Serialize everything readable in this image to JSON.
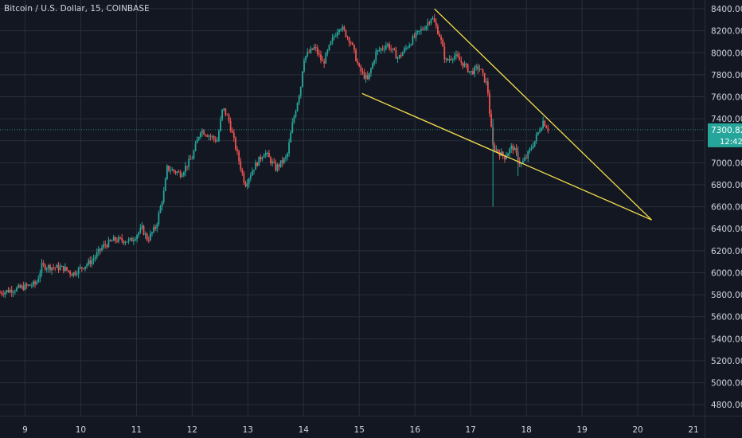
{
  "chart_data": {
    "type": "candlestick",
    "title": "Bitcoin / U.S. Dollar, 15, COINBASE",
    "xlabel": "",
    "ylabel": "",
    "grid": true,
    "x_ticks": [
      "9",
      "10",
      "11",
      "12",
      "13",
      "14",
      "15",
      "16",
      "17",
      "18",
      "19",
      "20",
      "21"
    ],
    "xlim_days": [
      8.55,
      21.2
    ],
    "y_ticks": [
      4800,
      5000,
      5200,
      5400,
      5600,
      5800,
      6000,
      6200,
      6400,
      6600,
      6800,
      7000,
      7200,
      7400,
      7600,
      7800,
      8000,
      8200,
      8400
    ],
    "ylim": [
      4700,
      8480
    ],
    "price_path": [
      {
        "day": 8.55,
        "price": 5820
      },
      {
        "day": 8.9,
        "price": 5860
      },
      {
        "day": 9.2,
        "price": 5900
      },
      {
        "day": 9.3,
        "price": 6060
      },
      {
        "day": 9.7,
        "price": 6040
      },
      {
        "day": 9.85,
        "price": 5990
      },
      {
        "day": 10.2,
        "price": 6110
      },
      {
        "day": 10.4,
        "price": 6240
      },
      {
        "day": 10.6,
        "price": 6300
      },
      {
        "day": 10.9,
        "price": 6290
      },
      {
        "day": 11.1,
        "price": 6400
      },
      {
        "day": 11.2,
        "price": 6300
      },
      {
        "day": 11.35,
        "price": 6420
      },
      {
        "day": 11.5,
        "price": 6750
      },
      {
        "day": 11.55,
        "price": 6950
      },
      {
        "day": 11.8,
        "price": 6900
      },
      {
        "day": 12.0,
        "price": 7050
      },
      {
        "day": 12.15,
        "price": 7300
      },
      {
        "day": 12.3,
        "price": 7250
      },
      {
        "day": 12.45,
        "price": 7200
      },
      {
        "day": 12.55,
        "price": 7500
      },
      {
        "day": 12.65,
        "price": 7400
      },
      {
        "day": 12.8,
        "price": 7100
      },
      {
        "day": 12.95,
        "price": 6800
      },
      {
        "day": 13.1,
        "price": 6950
      },
      {
        "day": 13.3,
        "price": 7100
      },
      {
        "day": 13.5,
        "price": 6950
      },
      {
        "day": 13.7,
        "price": 7050
      },
      {
        "day": 13.8,
        "price": 7350
      },
      {
        "day": 13.95,
        "price": 7700
      },
      {
        "day": 14.0,
        "price": 7950
      },
      {
        "day": 14.2,
        "price": 8050
      },
      {
        "day": 14.35,
        "price": 7900
      },
      {
        "day": 14.5,
        "price": 8100
      },
      {
        "day": 14.65,
        "price": 8250
      },
      {
        "day": 14.85,
        "price": 8100
      },
      {
        "day": 15.0,
        "price": 7850
      },
      {
        "day": 15.15,
        "price": 7750
      },
      {
        "day": 15.3,
        "price": 8000
      },
      {
        "day": 15.5,
        "price": 8080
      },
      {
        "day": 15.7,
        "price": 7950
      },
      {
        "day": 15.85,
        "price": 8050
      },
      {
        "day": 16.0,
        "price": 8150
      },
      {
        "day": 16.2,
        "price": 8250
      },
      {
        "day": 16.3,
        "price": 8330
      },
      {
        "day": 16.45,
        "price": 8150
      },
      {
        "day": 16.55,
        "price": 7920
      },
      {
        "day": 16.7,
        "price": 7980
      },
      {
        "day": 16.9,
        "price": 7880
      },
      {
        "day": 17.0,
        "price": 7820
      },
      {
        "day": 17.15,
        "price": 7870
      },
      {
        "day": 17.3,
        "price": 7700
      },
      {
        "day": 17.35,
        "price": 7400
      },
      {
        "day": 17.4,
        "price": 7150
      },
      {
        "day": 17.6,
        "price": 7050
      },
      {
        "day": 17.75,
        "price": 7150
      },
      {
        "day": 17.9,
        "price": 6980
      },
      {
        "day": 18.0,
        "price": 7050
      },
      {
        "day": 18.15,
        "price": 7200
      },
      {
        "day": 18.3,
        "price": 7380
      },
      {
        "day": 18.4,
        "price": 7300
      }
    ],
    "wicks": [
      {
        "day": 17.4,
        "low": 6600,
        "high": 7400
      },
      {
        "day": 17.85,
        "low": 6880,
        "high": 7150
      }
    ],
    "trendlines": [
      {
        "name": "upper",
        "color": "#f5e04c",
        "from": {
          "day": 16.35,
          "price": 8400
        },
        "to": {
          "day": 20.25,
          "price": 6480
        }
      },
      {
        "name": "lower",
        "color": "#f5e04c",
        "from": {
          "day": 15.05,
          "price": 7630
        },
        "to": {
          "day": 20.25,
          "price": 6480
        }
      }
    ],
    "current_price": {
      "value": "7300.82",
      "price": 7300.82,
      "countdown": "12:42",
      "color": "#26a69a"
    },
    "colors": {
      "up": "#26a69a",
      "down": "#ef5350",
      "background": "#131722",
      "grid": "#2a2e39",
      "axis_text": "#d1d4dc"
    }
  }
}
